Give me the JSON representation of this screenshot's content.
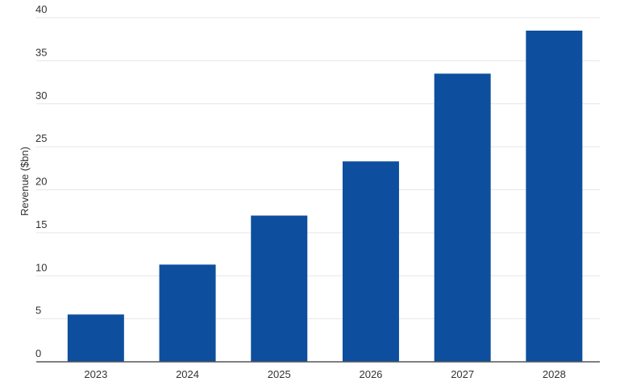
{
  "chart_data": {
    "type": "bar",
    "title": "",
    "xlabel": "",
    "ylabel": "Revenue ($bn)",
    "categories": [
      "2023",
      "2024",
      "2025",
      "2026",
      "2027",
      "2028"
    ],
    "values": [
      5.5,
      11.3,
      17.0,
      23.3,
      33.5,
      38.5
    ],
    "ylim": [
      0,
      40
    ],
    "yticks": [
      0,
      5,
      10,
      15,
      20,
      25,
      30,
      35,
      40
    ],
    "grid": true,
    "legend": "none",
    "colors": {
      "bar": "#0d4f9e"
    }
  }
}
